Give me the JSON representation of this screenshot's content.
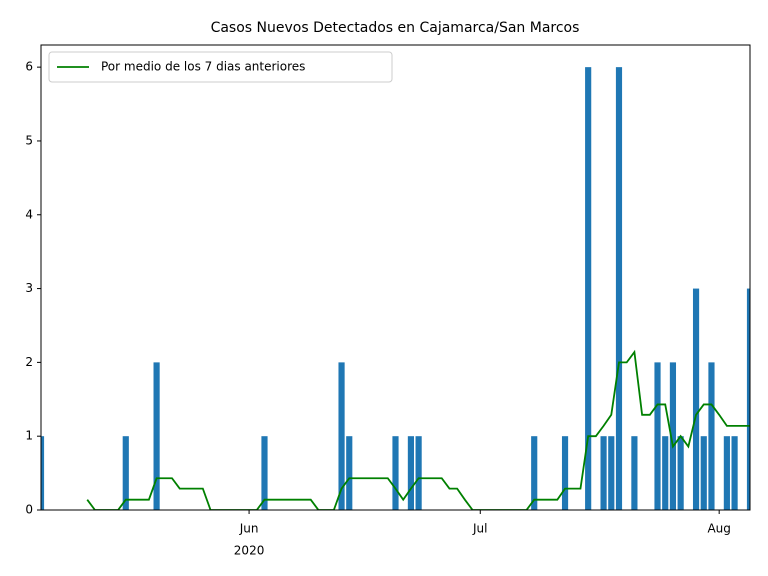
{
  "chart_data": {
    "type": "bar",
    "title": "Casos Nuevos Detectados en Cajamarca/San Marcos",
    "categories": [
      null,
      null,
      null,
      null,
      null,
      null,
      null,
      null,
      null,
      null,
      null,
      null,
      null,
      null,
      null,
      null,
      null,
      null,
      null,
      null,
      null,
      null,
      null,
      null,
      null,
      null,
      null,
      "Jun",
      null,
      null,
      null,
      null,
      null,
      null,
      null,
      null,
      null,
      null,
      null,
      null,
      null,
      null,
      null,
      null,
      null,
      null,
      null,
      null,
      null,
      null,
      null,
      null,
      null,
      null,
      null,
      null,
      null,
      "Jul",
      null,
      null,
      null,
      null,
      null,
      null,
      null,
      null,
      null,
      null,
      null,
      null,
      null,
      null,
      null,
      null,
      null,
      null,
      null,
      null,
      null,
      null,
      null,
      null,
      null,
      null,
      null,
      null,
      null,
      null,
      "Aug",
      null,
      null,
      null,
      null
    ],
    "x_sublabel": "2020",
    "series": [
      {
        "type": "bar",
        "color": "#1f77b4",
        "values": [
          1,
          0,
          0,
          0,
          0,
          0,
          0,
          0,
          0,
          0,
          0,
          1,
          0,
          0,
          0,
          2,
          0,
          0,
          0,
          0,
          0,
          0,
          0,
          0,
          0,
          0,
          0,
          0,
          0,
          1,
          0,
          0,
          0,
          0,
          0,
          0,
          0,
          0,
          0,
          2,
          1,
          0,
          0,
          0,
          0,
          0,
          1,
          0,
          1,
          1,
          0,
          0,
          0,
          0,
          0,
          0,
          0,
          0,
          0,
          0,
          0,
          0,
          0,
          0,
          1,
          0,
          0,
          0,
          1,
          0,
          0,
          6,
          0,
          1,
          1,
          6,
          0,
          1,
          0,
          0,
          2,
          1,
          2,
          1,
          0,
          3,
          1,
          2,
          0,
          1,
          1,
          0,
          3
        ]
      },
      {
        "type": "line",
        "name": "Por medio de los 7 dias anteriores",
        "color": "green",
        "values": [
          null,
          null,
          null,
          null,
          null,
          null,
          0.14,
          0,
          0,
          0,
          0,
          0.14,
          0.14,
          0.14,
          0.14,
          0.43,
          0.43,
          0.43,
          0.29,
          0.29,
          0.29,
          0.29,
          0,
          0,
          0,
          0,
          0,
          0,
          0,
          0.14,
          0.14,
          0.14,
          0.14,
          0.14,
          0.14,
          0.14,
          0,
          0,
          0,
          0.29,
          0.43,
          0.43,
          0.43,
          0.43,
          0.43,
          0.43,
          0.29,
          0.14,
          0.29,
          0.43,
          0.43,
          0.43,
          0.43,
          0.29,
          0.29,
          0.14,
          0,
          0,
          0,
          0,
          0,
          0,
          0,
          0,
          0.14,
          0.14,
          0.14,
          0.14,
          0.29,
          0.29,
          0.29,
          1,
          1,
          1.14,
          1.29,
          2,
          2,
          2.14,
          1.29,
          1.29,
          1.43,
          1.43,
          0.86,
          1,
          0.86,
          1.29,
          1.43,
          1.43,
          1.29,
          1.14,
          1.14,
          1.14,
          1.14
        ]
      }
    ],
    "ylim": [
      0,
      6.3
    ],
    "yticks": [
      0,
      1,
      2,
      3,
      4,
      5,
      6
    ],
    "legend": "upper left"
  }
}
